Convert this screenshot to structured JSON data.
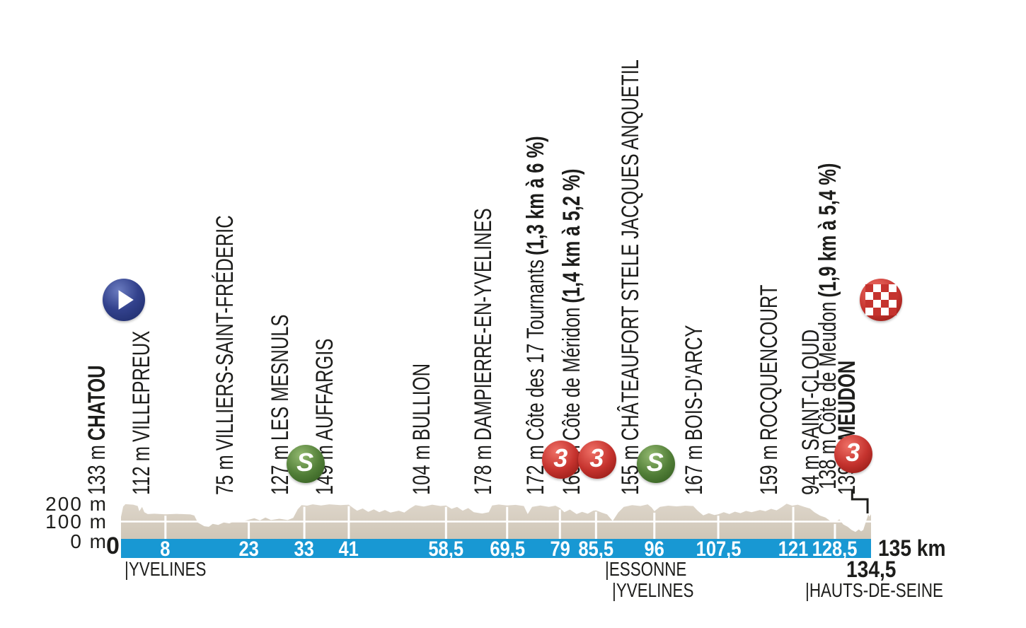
{
  "chart_data": {
    "type": "area",
    "description_visible_text_only": true,
    "y_axis": {
      "labels": [
        "200 m",
        "100 m",
        "0 m"
      ],
      "unit": "m",
      "range_m": [
        0,
        200
      ],
      "gridline_m": 100
    },
    "x_axis": {
      "unit": "km",
      "origin_label": "0",
      "end_label": "135 km",
      "end_sub_label": "134,5",
      "range_km": [
        0,
        135
      ],
      "ticks": [
        {
          "km": 8,
          "label": "8"
        },
        {
          "km": 23,
          "label": "23"
        },
        {
          "km": 33,
          "label": "33"
        },
        {
          "km": 41,
          "label": "41"
        },
        {
          "km": 58.5,
          "label": "58,5"
        },
        {
          "km": 69.5,
          "label": "69,5"
        },
        {
          "km": 79,
          "label": "79"
        },
        {
          "km": 85.5,
          "label": "85,5"
        },
        {
          "km": 96,
          "label": "96"
        },
        {
          "km": 107.5,
          "label": "107,5"
        },
        {
          "km": 121,
          "label": "121"
        },
        {
          "km": 128.5,
          "label": "128,5"
        }
      ]
    },
    "regions": [
      {
        "label": "|YVELINES",
        "km": 0.6,
        "row": 0
      },
      {
        "label": "|ESSONNE",
        "km": 87.1,
        "row": 0
      },
      {
        "label": "|YVELINES",
        "km": 88.4,
        "row": 1
      },
      {
        "label": "|HAUTS-DE-SEINE",
        "km": 123.2,
        "row": 1
      }
    ],
    "locations": [
      {
        "km": 0,
        "elevation": "133 m",
        "name": "CHATOU",
        "name_bold": true,
        "icon": "start"
      },
      {
        "km": 8,
        "elevation": "112 m",
        "name": "VILLEPREUX"
      },
      {
        "km": 23,
        "elevation": "75 m",
        "name": "VILLIERS-SAINT-FRÉDERIC"
      },
      {
        "km": 33,
        "elevation": "127 m",
        "name": "LES MESNULS",
        "icon": "sprint"
      },
      {
        "km": 41,
        "elevation": "149 m",
        "name": "AUFFARGIS"
      },
      {
        "km": 58.5,
        "elevation": "104 m",
        "name": "BULLION"
      },
      {
        "km": 69.5,
        "elevation": "178 m",
        "name": "DAMPIERRE-EN-YVELINES"
      },
      {
        "km": 79,
        "elevation": "172 m",
        "name": "Côte des 17 Tournants",
        "detail": "(1,3 km à 6 %)",
        "icon": "cat3"
      },
      {
        "km": 85.5,
        "elevation": "160 m",
        "name": "Côte de Méridon",
        "detail": "(1,4 km à 5,2 %)",
        "icon": "cat3"
      },
      {
        "km": 96,
        "elevation": "155 m",
        "name": "CHÂTEAUFORT STELE JACQUES ANQUETIL",
        "icon": "sprint"
      },
      {
        "km": 107.5,
        "elevation": "167 m",
        "name": "BOIS-D'ARCY"
      },
      {
        "km": 121,
        "elevation": "159 m",
        "name": "ROCQUENCOURT"
      },
      {
        "km": 128.5,
        "elevation": "94 m",
        "name": "SAINT-CLOUD"
      },
      {
        "km": 134.5,
        "elevation": "138 m",
        "name": "Côte de Meudon",
        "detail": "(1,9 km à 5,4 %)",
        "icon": "cat3",
        "label_km": 131.6,
        "connector": true
      },
      {
        "km": 135,
        "elevation": "139 m",
        "name": "MEUDON",
        "name_bold": true,
        "icon": "finish"
      }
    ],
    "icons": {
      "sprint_glyph": "S",
      "cat3_glyph": "3"
    },
    "colors": {
      "bar_blue": "#1898d3",
      "profile_beige_top": "#ddd5c9",
      "profile_beige_bottom": "#cfc6b7",
      "cat3_red": "#c5332e",
      "sprint_green": "#527f38",
      "start_navy": "#32418c",
      "text_black": "#1d1d1b"
    },
    "profile_points_km_m": [
      [
        0,
        125
      ],
      [
        0.4,
        180
      ],
      [
        0.8,
        193
      ],
      [
        2.2,
        190
      ],
      [
        3,
        183
      ],
      [
        3.3,
        155
      ],
      [
        3.8,
        178
      ],
      [
        4.2,
        150
      ],
      [
        4.8,
        140
      ],
      [
        6,
        142
      ],
      [
        8,
        139
      ],
      [
        10,
        141
      ],
      [
        12.5,
        138
      ],
      [
        13.2,
        132
      ],
      [
        13.8,
        95
      ],
      [
        15,
        75
      ],
      [
        15.8,
        72
      ],
      [
        16.5,
        88
      ],
      [
        17.5,
        82
      ],
      [
        18.5,
        95
      ],
      [
        19.5,
        90
      ],
      [
        20.5,
        103
      ],
      [
        21.5,
        98
      ],
      [
        23,
        110
      ],
      [
        24,
        118
      ],
      [
        25,
        106
      ],
      [
        26,
        122
      ],
      [
        27,
        108
      ],
      [
        28.5,
        115
      ],
      [
        30,
        108
      ],
      [
        31,
        120
      ],
      [
        31.8,
        165
      ],
      [
        32.5,
        188
      ],
      [
        33.5,
        185
      ],
      [
        34.5,
        192
      ],
      [
        36,
        186
      ],
      [
        37.5,
        192
      ],
      [
        39.5,
        188
      ],
      [
        41,
        190
      ],
      [
        41.8,
        172
      ],
      [
        42.5,
        158
      ],
      [
        43.5,
        170
      ],
      [
        44.5,
        152
      ],
      [
        45.5,
        165
      ],
      [
        46.5,
        150
      ],
      [
        47.5,
        162
      ],
      [
        48.5,
        148
      ],
      [
        50,
        158
      ],
      [
        51,
        148
      ],
      [
        52,
        170
      ],
      [
        53,
        188
      ],
      [
        54.5,
        180
      ],
      [
        56,
        190
      ],
      [
        57.5,
        183
      ],
      [
        58.5,
        186
      ],
      [
        59.5,
        168
      ],
      [
        60.5,
        178
      ],
      [
        61.5,
        158
      ],
      [
        62.5,
        172
      ],
      [
        63.5,
        150
      ],
      [
        65,
        143
      ],
      [
        66.2,
        150
      ],
      [
        66.8,
        186
      ],
      [
        68,
        191
      ],
      [
        69.5,
        186
      ],
      [
        71,
        189
      ],
      [
        72.5,
        183
      ],
      [
        73.2,
        140
      ],
      [
        74,
        178
      ],
      [
        75.5,
        186
      ],
      [
        77,
        178
      ],
      [
        78.2,
        185
      ],
      [
        79,
        172
      ],
      [
        79.8,
        150
      ],
      [
        80.8,
        164
      ],
      [
        82,
        140
      ],
      [
        83,
        152
      ],
      [
        84,
        142
      ],
      [
        85,
        158
      ],
      [
        85.5,
        160
      ],
      [
        86.5,
        148
      ],
      [
        87.5,
        138
      ],
      [
        88.5,
        103
      ],
      [
        89.5,
        148
      ],
      [
        90.5,
        178
      ],
      [
        92,
        188
      ],
      [
        93.5,
        183
      ],
      [
        94.8,
        192
      ],
      [
        95.5,
        175
      ],
      [
        96,
        155
      ],
      [
        97,
        178
      ],
      [
        98.5,
        185
      ],
      [
        100,
        181
      ],
      [
        101.5,
        185
      ],
      [
        103,
        183
      ],
      [
        103.8,
        158
      ],
      [
        104.8,
        133
      ],
      [
        105.8,
        145
      ],
      [
        106.8,
        135
      ],
      [
        107.5,
        139
      ],
      [
        108.5,
        150
      ],
      [
        109.5,
        140
      ],
      [
        110.5,
        153
      ],
      [
        111.5,
        145
      ],
      [
        112.5,
        157
      ],
      [
        113.5,
        150
      ],
      [
        115,
        162
      ],
      [
        116,
        155
      ],
      [
        117,
        168
      ],
      [
        118,
        160
      ],
      [
        119,
        178
      ],
      [
        119.8,
        195
      ],
      [
        120.8,
        185
      ],
      [
        121.8,
        190
      ],
      [
        123,
        178
      ],
      [
        124,
        170
      ],
      [
        124.8,
        150
      ],
      [
        125.8,
        132
      ],
      [
        126.8,
        122
      ],
      [
        127.8,
        100
      ],
      [
        128.5,
        95
      ],
      [
        129.3,
        112
      ],
      [
        130,
        85
      ],
      [
        130.8,
        72
      ],
      [
        131.5,
        55
      ],
      [
        132.2,
        45
      ],
      [
        132.8,
        58
      ],
      [
        133.2,
        48
      ],
      [
        133.6,
        55
      ],
      [
        134.5,
        138
      ],
      [
        134.7,
        126
      ],
      [
        135,
        139
      ]
    ]
  }
}
